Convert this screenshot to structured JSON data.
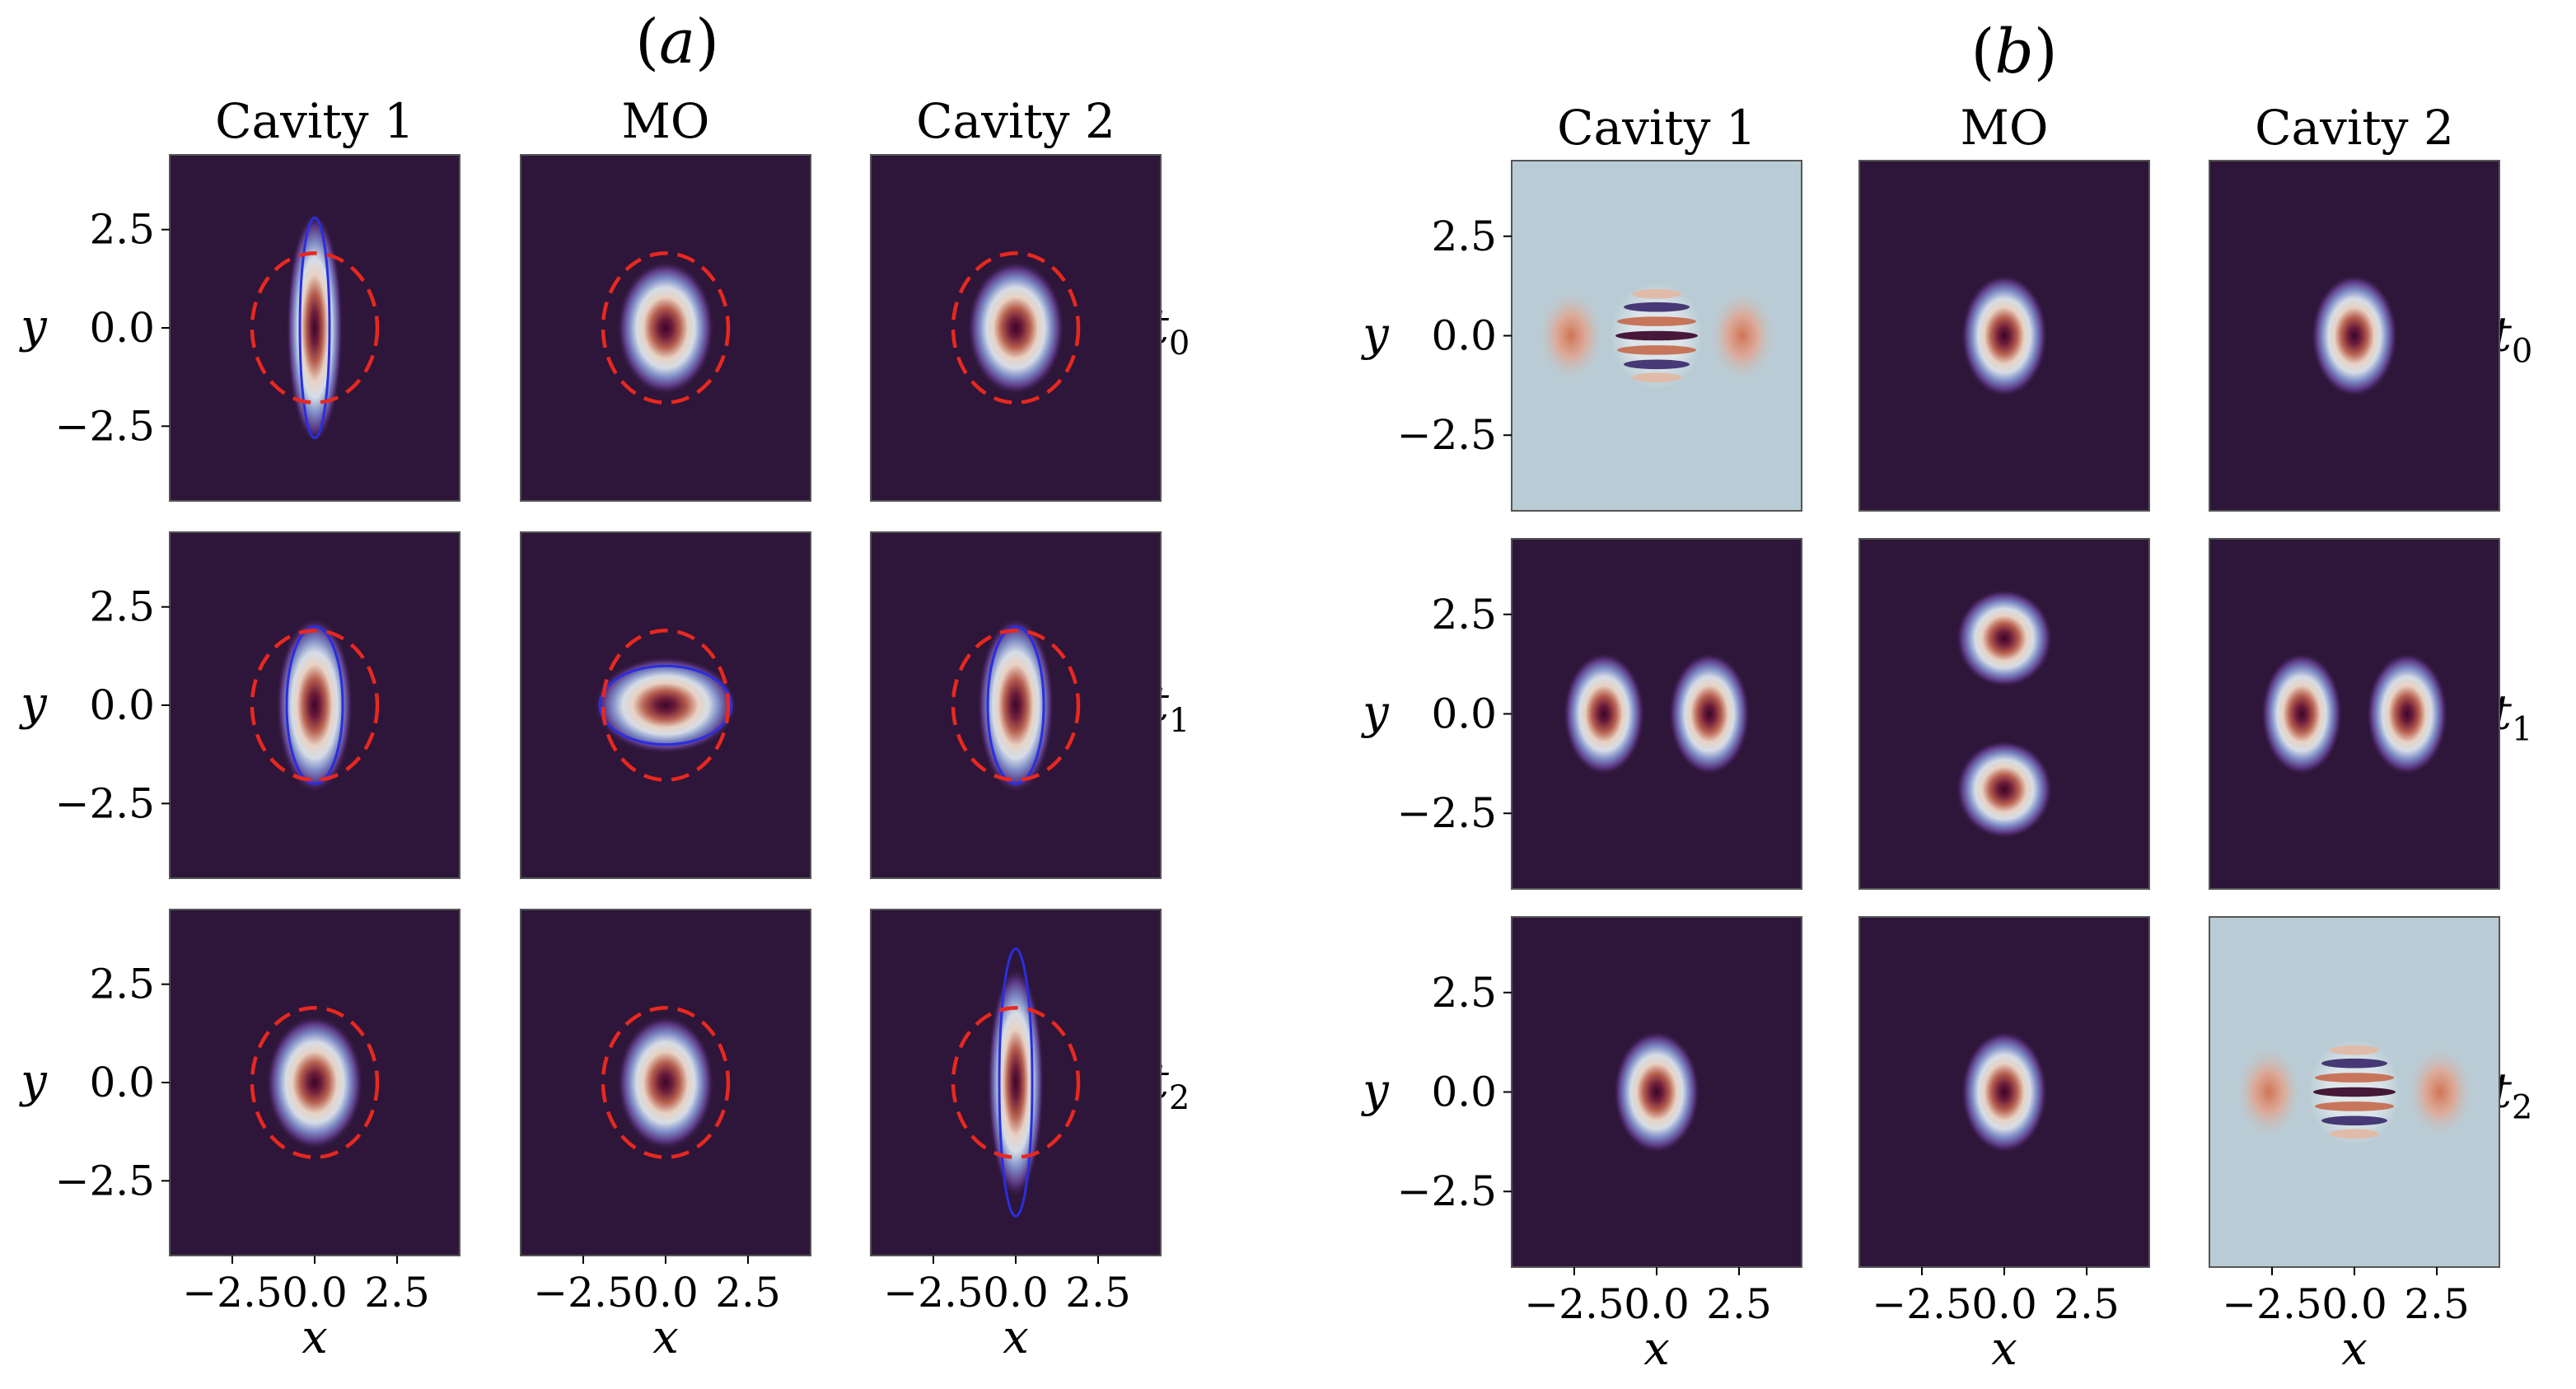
{
  "chart_data": {
    "type": "heatmap",
    "description_note": "Two 3x3 grids of 2D density maps (rows t0, t1, t2; columns Cavity 1, MO, Cavity 2).",
    "colors": {
      "background_dark": "#2d1639",
      "wigner_negative_bg": "#b9ccd5",
      "contour_dashed": "#e8281f",
      "contour_solid": "#2b2ee0"
    },
    "axis": {
      "xlabel": "x",
      "ylabel": "y",
      "xlim": [
        -4.4,
        4.4
      ],
      "ylim": [
        -4.4,
        4.4
      ],
      "xticks": [
        -2.5,
        0.0,
        2.5
      ],
      "yticks": [
        2.5,
        0.0,
        -2.5
      ],
      "xtick_labels": [
        "−2.5",
        "0.0",
        "2.5"
      ],
      "ytick_labels": [
        "2.5",
        "0.0",
        "−2.5"
      ]
    },
    "panels": [
      {
        "label_open": "(",
        "label_letter": "a",
        "label_close": ")",
        "columns": [
          "Cavity 1",
          "MO",
          "Cavity 2"
        ],
        "rows": [
          {
            "t_base": "t",
            "t_sub": "0"
          },
          {
            "t_base": "t",
            "t_sub": "1"
          },
          {
            "t_base": "t",
            "t_sub": "2"
          }
        ],
        "cells": [
          [
            {
              "kind": "blob",
              "centers": [
                [
                  0,
                  0
                ]
              ],
              "sx": 0.55,
              "sy": 1.9,
              "dashed_r": 1.9,
              "solid": [
                0.45,
                2.8
              ]
            },
            {
              "kind": "blob",
              "centers": [
                [
                  0,
                  0
                ]
              ],
              "sx": 0.95,
              "sy": 1.1,
              "dashed_r": 1.9
            },
            {
              "kind": "blob",
              "centers": [
                [
                  0,
                  0
                ]
              ],
              "sx": 0.95,
              "sy": 1.1,
              "dashed_r": 1.9
            }
          ],
          [
            {
              "kind": "blob",
              "centers": [
                [
                  0,
                  0
                ]
              ],
              "sx": 0.75,
              "sy": 1.45,
              "dashed_r": 1.9,
              "solid": [
                0.85,
                2.0
              ]
            },
            {
              "kind": "blob",
              "centers": [
                [
                  0,
                  0
                ]
              ],
              "sx": 1.4,
              "sy": 0.8,
              "dashed_r": 1.9,
              "solid": [
                2.0,
                1.0
              ]
            },
            {
              "kind": "blob",
              "centers": [
                [
                  0,
                  0
                ]
              ],
              "sx": 0.75,
              "sy": 1.45,
              "dashed_r": 1.9,
              "solid": [
                0.85,
                2.0
              ]
            }
          ],
          [
            {
              "kind": "blob",
              "centers": [
                [
                  0,
                  0
                ]
              ],
              "sx": 0.95,
              "sy": 1.1,
              "dashed_r": 1.9
            },
            {
              "kind": "blob",
              "centers": [
                [
                  0,
                  0
                ]
              ],
              "sx": 0.95,
              "sy": 1.1,
              "dashed_r": 1.9
            },
            {
              "kind": "blob",
              "centers": [
                [
                  0,
                  0
                ]
              ],
              "sx": 0.55,
              "sy": 1.9,
              "dashed_r": 1.9,
              "solid": [
                0.5,
                3.4
              ]
            }
          ]
        ]
      },
      {
        "label_open": "(",
        "label_letter": "b",
        "label_close": ")",
        "columns": [
          "Cavity 1",
          "MO",
          "Cavity 2"
        ],
        "rows": [
          {
            "t_base": "t",
            "t_sub": "0"
          },
          {
            "t_base": "t",
            "t_sub": "1"
          },
          {
            "t_base": "t",
            "t_sub": "2"
          }
        ],
        "cells": [
          [
            {
              "kind": "cat"
            },
            {
              "kind": "blob",
              "centers": [
                [
                  0,
                  0
                ]
              ],
              "sx": 0.85,
              "sy": 1.0
            },
            {
              "kind": "blob",
              "centers": [
                [
                  0,
                  0
                ]
              ],
              "sx": 0.85,
              "sy": 1.0
            }
          ],
          [
            {
              "kind": "blob",
              "centers": [
                [
                  -1.6,
                  0
                ],
                [
                  1.6,
                  0
                ]
              ],
              "sx": 0.8,
              "sy": 1.0
            },
            {
              "kind": "blob",
              "centers": [
                [
                  0,
                  1.9
                ],
                [
                  0,
                  -1.9
                ]
              ],
              "sx": 0.95,
              "sy": 0.8
            },
            {
              "kind": "blob",
              "centers": [
                [
                  -1.6,
                  0
                ],
                [
                  1.6,
                  0
                ]
              ],
              "sx": 0.8,
              "sy": 1.0
            }
          ],
          [
            {
              "kind": "blob",
              "centers": [
                [
                  0,
                  0
                ]
              ],
              "sx": 0.85,
              "sy": 1.0
            },
            {
              "kind": "blob",
              "centers": [
                [
                  0,
                  0
                ]
              ],
              "sx": 0.85,
              "sy": 1.0
            },
            {
              "kind": "cat"
            }
          ]
        ]
      }
    ]
  }
}
